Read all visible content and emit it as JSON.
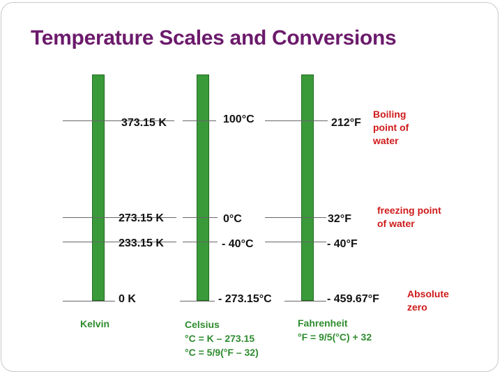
{
  "title": "Temperature Scales and Conversions",
  "columns": {
    "kelvin": {
      "name": "Kelvin",
      "values": {
        "boiling": "373.15 K",
        "freezing": "273.15 K",
        "minus40": "233.15 K",
        "absolute": "0 K"
      }
    },
    "celsius": {
      "name": "Celsius",
      "formula1": "°C = K – 273.15",
      "formula2": "°C = 5/9(°F – 32)",
      "values": {
        "boiling": "100°C",
        "freezing": "0°C",
        "minus40": "- 40°C",
        "absolute": "- 273.15°C"
      }
    },
    "fahrenheit": {
      "name": "Fahrenheit",
      "formula1": "°F = 9/5(°C) + 32",
      "values": {
        "boiling": "212°F",
        "freezing": "32°F",
        "minus40": "- 40°F",
        "absolute": "- 459.67°F"
      }
    }
  },
  "notes": {
    "boiling": [
      "Boiling",
      "point of",
      "water"
    ],
    "freezing": [
      "freezing point",
      "of water"
    ],
    "absolute": [
      "Absolute",
      "zero"
    ]
  },
  "colors": {
    "title": "#6b1a6b",
    "bar": "#3a9a3a",
    "note": "#d01a1a",
    "scale_label": "#2e8b2e"
  }
}
